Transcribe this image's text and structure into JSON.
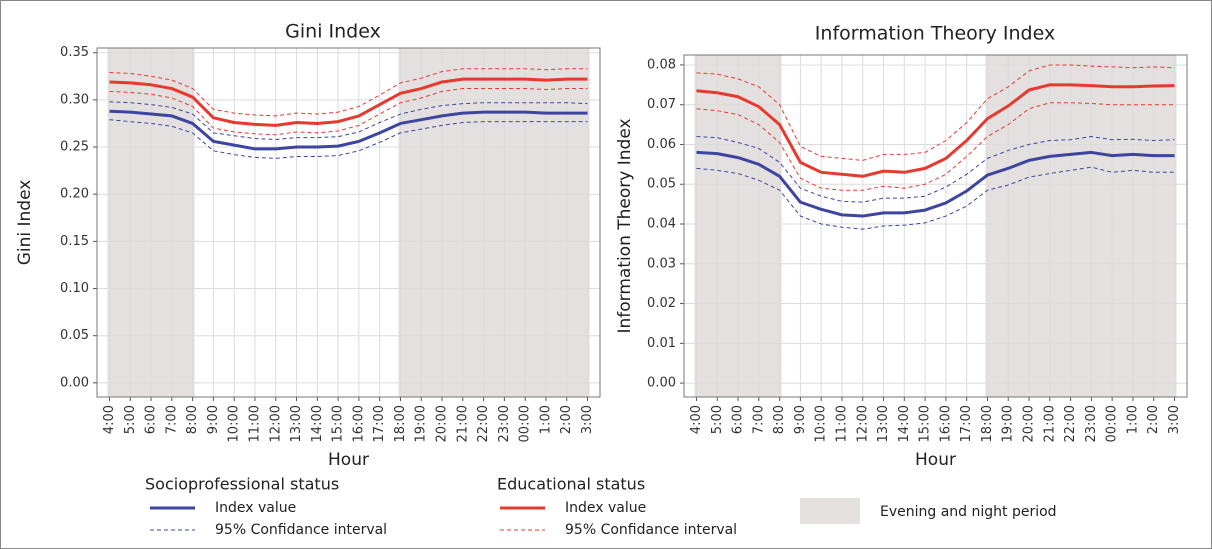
{
  "chart_data": [
    {
      "type": "line",
      "title": "Gini Index",
      "xlabel": "Hour",
      "ylabel": "Gini Index",
      "categories": [
        "4:00",
        "5:00",
        "6:00",
        "7:00",
        "8:00",
        "9:00",
        "10:00",
        "11:00",
        "12:00",
        "13:00",
        "14:00",
        "15:00",
        "16:00",
        "17:00",
        "18:00",
        "19:00",
        "20:00",
        "21:00",
        "22:00",
        "23:00",
        "00:00",
        "1:00",
        "2:00",
        "3:00"
      ],
      "ylim": [
        -0.015,
        0.355
      ],
      "yticks": [
        {
          "value": 0,
          "label": "0.00"
        },
        {
          "value": 0.05,
          "label": "0.05"
        },
        {
          "value": 0.1,
          "label": "0.10"
        },
        {
          "value": 0.15,
          "label": "0.15"
        },
        {
          "value": 0.2,
          "label": "0.20"
        },
        {
          "value": 0.25,
          "label": "0.25"
        },
        {
          "value": 0.3,
          "label": "0.30"
        },
        {
          "value": 0.35,
          "label": "0.35"
        }
      ],
      "grid": true,
      "shaded": [
        [
          0,
          4
        ],
        [
          14,
          23
        ]
      ],
      "shade_color": "#e3e0df",
      "series": [
        {
          "name": "Index value",
          "color": "#3d45a0",
          "width": 3,
          "dashed": false,
          "values": [
            0.288,
            0.287,
            0.285,
            0.283,
            0.275,
            0.256,
            0.252,
            0.248,
            0.248,
            0.25,
            0.25,
            0.251,
            0.256,
            0.265,
            0.275,
            0.279,
            0.283,
            0.286,
            0.287,
            0.287,
            0.287,
            0.286,
            0.286,
            0.286
          ]
        },
        {
          "name": "95% Confidance interval",
          "color": "#3d45a0",
          "width": 1,
          "dashed": true,
          "values": [
            0.279,
            0.277,
            0.275,
            0.272,
            0.265,
            0.246,
            0.242,
            0.239,
            0.238,
            0.24,
            0.24,
            0.241,
            0.246,
            0.255,
            0.265,
            0.269,
            0.273,
            0.276,
            0.277,
            0.277,
            0.277,
            0.277,
            0.277,
            0.277
          ]
        },
        {
          "color": "#3d45a0",
          "width": 1,
          "dashed": true,
          "values": [
            0.298,
            0.297,
            0.295,
            0.292,
            0.285,
            0.265,
            0.262,
            0.259,
            0.258,
            0.26,
            0.26,
            0.261,
            0.266,
            0.276,
            0.285,
            0.29,
            0.294,
            0.296,
            0.297,
            0.297,
            0.297,
            0.297,
            0.297,
            0.296
          ]
        },
        {
          "name": "Index value",
          "color": "#e8392e",
          "width": 3,
          "dashed": false,
          "values": [
            0.319,
            0.318,
            0.316,
            0.312,
            0.303,
            0.281,
            0.276,
            0.274,
            0.273,
            0.276,
            0.275,
            0.277,
            0.283,
            0.295,
            0.307,
            0.312,
            0.319,
            0.322,
            0.322,
            0.322,
            0.322,
            0.321,
            0.322,
            0.322
          ]
        },
        {
          "name": "95% Confidance interval",
          "color": "#e8392e",
          "width": 1,
          "dashed": true,
          "values": [
            0.309,
            0.308,
            0.306,
            0.302,
            0.293,
            0.27,
            0.266,
            0.264,
            0.263,
            0.266,
            0.265,
            0.267,
            0.273,
            0.285,
            0.297,
            0.302,
            0.309,
            0.312,
            0.312,
            0.312,
            0.312,
            0.311,
            0.312,
            0.312
          ]
        },
        {
          "color": "#e8392e",
          "width": 1,
          "dashed": true,
          "values": [
            0.329,
            0.328,
            0.325,
            0.321,
            0.312,
            0.29,
            0.286,
            0.284,
            0.283,
            0.286,
            0.285,
            0.287,
            0.293,
            0.305,
            0.318,
            0.323,
            0.33,
            0.333,
            0.333,
            0.333,
            0.333,
            0.332,
            0.333,
            0.333
          ]
        }
      ]
    },
    {
      "type": "line",
      "title": "Information Theory Index",
      "xlabel": "Hour",
      "ylabel": "Information Theory Index",
      "categories": [
        "4:00",
        "5:00",
        "6:00",
        "7:00",
        "8:00",
        "9:00",
        "10:00",
        "11:00",
        "12:00",
        "13:00",
        "14:00",
        "15:00",
        "16:00",
        "17:00",
        "18:00",
        "19:00",
        "20:00",
        "21:00",
        "22:00",
        "23:00",
        "00:00",
        "1:00",
        "2:00",
        "3:00"
      ],
      "ylim": [
        -0.0035,
        0.0825
      ],
      "yticks": [
        {
          "value": 0,
          "label": "0.00"
        },
        {
          "value": 0.01,
          "label": "0.01"
        },
        {
          "value": 0.02,
          "label": "0.02"
        },
        {
          "value": 0.03,
          "label": "0.03"
        },
        {
          "value": 0.04,
          "label": "0.04"
        },
        {
          "value": 0.05,
          "label": "0.05"
        },
        {
          "value": 0.06,
          "label": "0.06"
        },
        {
          "value": 0.07,
          "label": "0.07"
        },
        {
          "value": 0.08,
          "label": "0.08"
        }
      ],
      "grid": true,
      "shaded": [
        [
          0,
          4
        ],
        [
          14,
          23
        ]
      ],
      "shade_color": "#e3e0df",
      "series": [
        {
          "color": "#3d45a0",
          "width": 3,
          "dashed": false,
          "values": [
            0.058,
            0.0577,
            0.0567,
            0.055,
            0.052,
            0.0455,
            0.0437,
            0.0423,
            0.042,
            0.0428,
            0.0428,
            0.0435,
            0.0453,
            0.0483,
            0.0523,
            0.054,
            0.056,
            0.057,
            0.0575,
            0.058,
            0.0572,
            0.0575,
            0.0572,
            0.0572
          ]
        },
        {
          "color": "#3d45a0",
          "width": 1,
          "dashed": true,
          "values": [
            0.054,
            0.0535,
            0.0527,
            0.051,
            0.0485,
            0.042,
            0.04,
            0.0392,
            0.0387,
            0.0395,
            0.0397,
            0.0403,
            0.042,
            0.0445,
            0.0485,
            0.0498,
            0.0518,
            0.0527,
            0.0535,
            0.0543,
            0.053,
            0.0535,
            0.053,
            0.053
          ]
        },
        {
          "color": "#3d45a0",
          "width": 1,
          "dashed": true,
          "values": [
            0.062,
            0.0617,
            0.0605,
            0.059,
            0.0555,
            0.049,
            0.047,
            0.0457,
            0.0455,
            0.0465,
            0.0465,
            0.047,
            0.0493,
            0.0525,
            0.0565,
            0.0585,
            0.06,
            0.061,
            0.0612,
            0.062,
            0.0612,
            0.0613,
            0.061,
            0.0612
          ]
        },
        {
          "color": "#e8392e",
          "width": 3,
          "dashed": false,
          "values": [
            0.0735,
            0.073,
            0.072,
            0.0695,
            0.065,
            0.0555,
            0.053,
            0.0525,
            0.052,
            0.0533,
            0.053,
            0.054,
            0.0565,
            0.061,
            0.0665,
            0.0697,
            0.0737,
            0.075,
            0.075,
            0.0748,
            0.0745,
            0.0745,
            0.0747,
            0.0748
          ]
        },
        {
          "color": "#e8392e",
          "width": 1,
          "dashed": true,
          "values": [
            0.069,
            0.0685,
            0.0675,
            0.065,
            0.0605,
            0.0515,
            0.049,
            0.0485,
            0.0485,
            0.0495,
            0.049,
            0.05,
            0.0525,
            0.057,
            0.062,
            0.065,
            0.069,
            0.0705,
            0.0705,
            0.0703,
            0.07,
            0.07,
            0.07,
            0.07
          ]
        },
        {
          "color": "#e8392e",
          "width": 1,
          "dashed": true,
          "values": [
            0.078,
            0.0777,
            0.0765,
            0.0745,
            0.07,
            0.0595,
            0.057,
            0.0565,
            0.056,
            0.0575,
            0.0575,
            0.058,
            0.061,
            0.0655,
            0.0715,
            0.0745,
            0.0785,
            0.08,
            0.08,
            0.0797,
            0.0795,
            0.0793,
            0.0795,
            0.0793
          ]
        }
      ]
    }
  ],
  "legend": {
    "titles": [
      "Socioprofessional status",
      "Educational status"
    ],
    "shade_label": "Evening and night period"
  }
}
